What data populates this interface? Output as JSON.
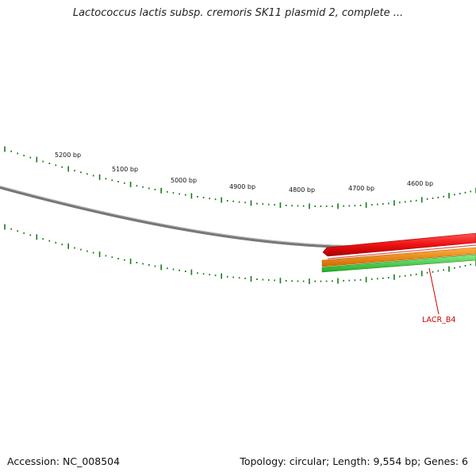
{
  "title": "Lactococcus lactis subsp. cremoris SK11 plasmid 2, complete ...",
  "accession": "Accession: NC_008504",
  "summary": "Topology: circular; Length: 9,554 bp; Genes: 6",
  "scale_labels": [
    "5200 bp",
    "5100 bp",
    "5000 bp",
    "4900 bp",
    "4800 bp",
    "4700 bp",
    "4600 bp"
  ],
  "gene_label": "LACR_B4",
  "colors": {
    "backbone": "#777777",
    "tick": "#1a7a1a",
    "gene_red": "#ee1111",
    "gene_orange": "#f08a10",
    "gene_green": "#33bb33",
    "label_red": "#cc0000"
  }
}
